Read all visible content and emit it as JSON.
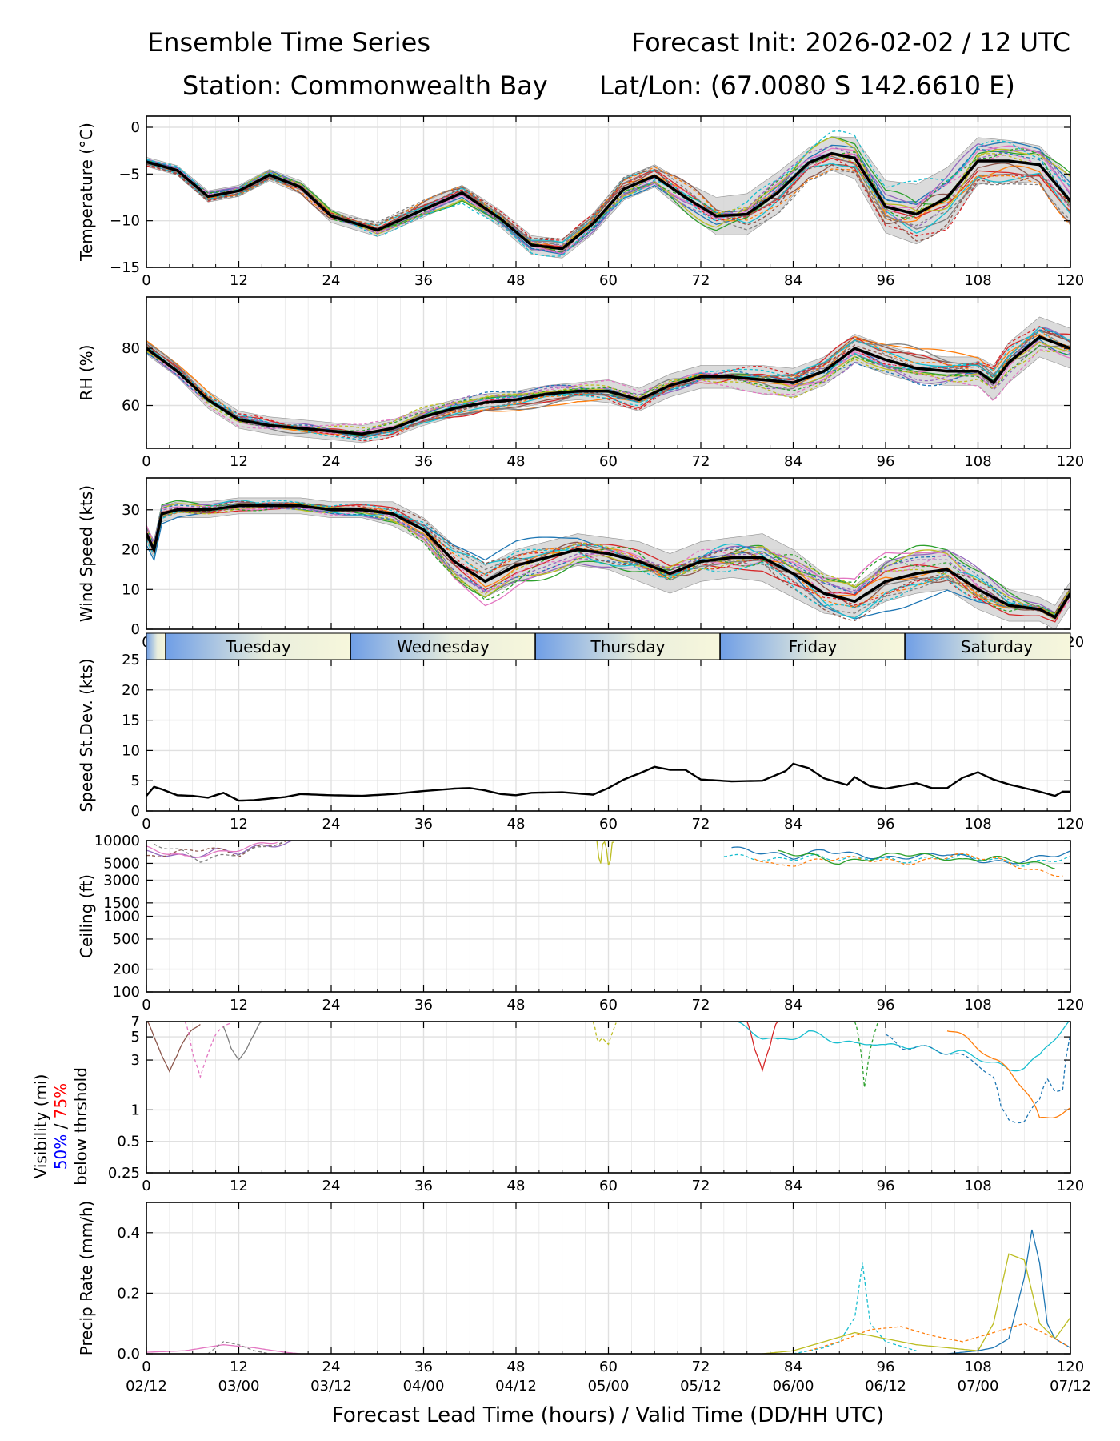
{
  "header": {
    "title": "Ensemble Time Series",
    "init": "Forecast Init: 2026-02-02 / 12 UTC",
    "station": "Station: Commonwealth Bay",
    "latlon": "Lat/Lon: (67.0080 S 142.6610 E)"
  },
  "colors": {
    "members": [
      "#1f77b4",
      "#ff7f0e",
      "#2ca02c",
      "#d62728",
      "#9467bd",
      "#8c564b",
      "#e377c2",
      "#7f7f7f",
      "#bcbd22",
      "#17becf"
    ],
    "mean": "#000000",
    "spread": "#d3d3d3",
    "grid": "#e0e0e0",
    "day_band_start": "#6f9ee6",
    "day_band_end": "#f7f7dc"
  },
  "x_axis": {
    "range": [
      0,
      120
    ],
    "ticks": [
      0,
      12,
      24,
      36,
      48,
      60,
      72,
      84,
      96,
      108,
      120
    ],
    "valid_labels": [
      "02/12",
      "03/00",
      "03/12",
      "04/00",
      "04/12",
      "05/00",
      "05/12",
      "06/00",
      "06/12",
      "07/00",
      "07/12"
    ],
    "xlabel": "Forecast Lead Time (hours) / Valid Time (DD/HH UTC)"
  },
  "days": {
    "labels": [
      "Tuesday",
      "Wednesday",
      "Thursday",
      "Friday",
      "Saturday"
    ],
    "boundaries_h": [
      2.5,
      26.5,
      50.5,
      74.5,
      98.5
    ]
  },
  "visibility_label": {
    "line1": "Visibility (mi)",
    "blue": "50%",
    "sep": " / ",
    "red": "75%",
    "line3": "below thrshold"
  },
  "chart_data": [
    {
      "type": "line",
      "title": "",
      "ylabel": "Temperature (°C)",
      "ylim": [
        -15,
        1.2
      ],
      "yticks": [
        0,
        -5,
        -10,
        -15
      ],
      "ytick_labels": [
        "0",
        "−5",
        "−10",
        "−15"
      ],
      "x": [
        0,
        4,
        8,
        12,
        16,
        20,
        24,
        30,
        36,
        41,
        46,
        50,
        54,
        58,
        62,
        66,
        70,
        74,
        78,
        82,
        86,
        89,
        92,
        96,
        100,
        104,
        108,
        112,
        116,
        120
      ],
      "mean": [
        -3.7,
        -4.6,
        -7.4,
        -6.8,
        -5.1,
        -6.4,
        -9.5,
        -11.0,
        -8.8,
        -7.0,
        -9.8,
        -12.6,
        -13.0,
        -10.3,
        -6.6,
        -5.2,
        -7.5,
        -9.5,
        -9.3,
        -7.0,
        -3.8,
        -2.8,
        -3.3,
        -8.5,
        -9.3,
        -7.5,
        -3.6,
        -3.6,
        -4.0,
        -7.9
      ],
      "spread": [
        0.5,
        0.5,
        0.6,
        0.6,
        0.6,
        0.7,
        0.7,
        0.7,
        0.8,
        0.8,
        0.9,
        1.0,
        1.0,
        1.1,
        1.2,
        1.2,
        1.6,
        2.0,
        2.2,
        2.2,
        1.6,
        1.8,
        2.2,
        2.8,
        3.2,
        3.2,
        2.5,
        2.2,
        2.0,
        2.6
      ]
    },
    {
      "type": "line",
      "title": "",
      "ylabel": "RH (%)",
      "ylim": [
        45,
        98
      ],
      "yticks": [
        60,
        80
      ],
      "ytick_labels": [
        "60",
        "80"
      ],
      "x": [
        0,
        4,
        8,
        12,
        16,
        20,
        24,
        28,
        32,
        36,
        40,
        44,
        48,
        52,
        56,
        60,
        64,
        68,
        72,
        76,
        80,
        84,
        88,
        92,
        96,
        100,
        104,
        108,
        110,
        112,
        116,
        120
      ],
      "mean": [
        80,
        72,
        62,
        55,
        53,
        52,
        51,
        50,
        52,
        56,
        59,
        61,
        62,
        64,
        65,
        65,
        62,
        67,
        70,
        70,
        69,
        68,
        72,
        80,
        76,
        73,
        72,
        72,
        68,
        75,
        84,
        80
      ],
      "spread": [
        2,
        2,
        3,
        3,
        3,
        3,
        3,
        3,
        3,
        3,
        3,
        3,
        3,
        3,
        3,
        4,
        4,
        4,
        4,
        4,
        5,
        5,
        5,
        5,
        5,
        5,
        5,
        5,
        6,
        7,
        7,
        7
      ]
    },
    {
      "type": "line",
      "title": "",
      "ylabel": "Wind Speed (kts)",
      "ylim": [
        0,
        38
      ],
      "yticks": [
        0,
        10,
        20,
        30
      ],
      "ytick_labels": [
        "0",
        "10",
        "20",
        "30"
      ],
      "x": [
        0,
        1,
        2,
        4,
        8,
        12,
        16,
        20,
        24,
        28,
        32,
        36,
        40,
        44,
        48,
        52,
        56,
        60,
        64,
        68,
        72,
        76,
        80,
        84,
        88,
        92,
        96,
        100,
        104,
        108,
        112,
        116,
        118,
        120
      ],
      "mean": [
        24,
        20,
        29,
        30,
        30,
        31,
        31,
        31,
        30,
        30,
        29,
        25,
        17,
        12,
        16,
        18,
        20,
        19,
        17,
        14,
        17,
        18,
        18,
        14,
        9,
        7,
        12,
        14,
        15,
        10,
        6,
        5,
        3,
        9
      ],
      "spread": [
        2,
        2,
        2,
        2,
        2,
        2,
        2,
        2,
        2,
        2,
        3,
        3,
        4,
        4,
        4,
        4,
        4,
        4,
        5,
        5,
        5,
        5,
        6,
        6,
        5,
        4,
        5,
        5,
        5,
        5,
        4,
        3,
        3,
        3
      ]
    },
    {
      "type": "line",
      "title": "",
      "ylabel": "Speed St.Dev. (kts)",
      "ylim": [
        0,
        25
      ],
      "yticks": [
        0,
        5,
        10,
        15,
        20,
        25
      ],
      "ytick_labels": [
        "0",
        "5",
        "10",
        "15",
        "20",
        "25"
      ],
      "x": [
        0,
        1,
        2,
        4,
        6,
        8,
        10,
        12,
        14,
        18,
        20,
        24,
        28,
        32,
        36,
        40,
        42,
        44,
        46,
        48,
        50,
        54,
        58,
        60,
        62,
        64,
        66,
        68,
        70,
        72,
        76,
        80,
        83,
        84,
        86,
        88,
        91,
        92,
        94,
        96,
        100,
        102,
        104,
        106,
        108,
        110,
        112,
        116,
        118,
        119,
        120
      ],
      "values": [
        2.5,
        4.0,
        3.6,
        2.6,
        2.5,
        2.2,
        3.0,
        1.7,
        1.8,
        2.3,
        2.8,
        2.6,
        2.5,
        2.8,
        3.3,
        3.7,
        3.8,
        3.4,
        2.8,
        2.6,
        3.0,
        3.1,
        2.7,
        3.8,
        5.2,
        6.2,
        7.3,
        6.8,
        6.8,
        5.2,
        4.9,
        5.0,
        6.6,
        7.8,
        7.1,
        5.4,
        4.3,
        5.6,
        4.1,
        3.7,
        4.6,
        3.8,
        3.8,
        5.5,
        6.4,
        5.2,
        4.4,
        3.2,
        2.5,
        3.2,
        3.2
      ]
    },
    {
      "type": "line",
      "title": "",
      "ylabel": "Ceiling (ft)",
      "scale": "log",
      "ylim": [
        100,
        10000
      ],
      "yticks": [
        100,
        200,
        500,
        1000,
        1500,
        3000,
        5000,
        10000
      ],
      "ytick_labels": [
        "100",
        "200",
        "500",
        "1000",
        "1500",
        "3000",
        "5000",
        "10000"
      ],
      "member_data": [
        {
          "x": [
            0,
            3,
            6,
            9,
            12,
            15,
            18,
            20
          ],
          "y": [
            7000,
            6500,
            6000,
            7500,
            7000,
            8500,
            9000,
            10000
          ]
        },
        {
          "x": [
            0,
            4,
            8,
            12,
            16,
            19
          ],
          "y": [
            6000,
            7000,
            8000,
            6500,
            9000,
            10000
          ]
        },
        {
          "x": [
            0,
            5,
            10,
            14,
            17
          ],
          "y": [
            8000,
            6000,
            7000,
            8500,
            10000
          ]
        },
        {
          "x": [
            1,
            4,
            7,
            11,
            15,
            18
          ],
          "y": [
            9000,
            7500,
            5500,
            6500,
            8000,
            10000
          ]
        },
        {
          "x": [
            58.5,
            58.8,
            59,
            59.3,
            59.6,
            60,
            60.2,
            60.5,
            60.9
          ],
          "y": [
            10000,
            5000,
            5000,
            10000,
            10000,
            5000,
            5000,
            10000,
            10000
          ]
        },
        {
          "x": [
            75,
            78,
            81,
            84,
            87,
            90,
            94,
            98,
            102,
            106,
            110,
            114,
            117,
            120
          ],
          "y": [
            6500,
            6000,
            5500,
            5800,
            6200,
            5600,
            6000,
            5300,
            5800,
            6200,
            5600,
            4800,
            5400,
            6000
          ]
        },
        {
          "x": [
            76,
            80,
            84,
            88,
            92,
            96,
            100,
            104,
            108,
            112,
            116,
            120
          ],
          "y": [
            8000,
            7000,
            6000,
            7500,
            6500,
            5800,
            6200,
            6800,
            5500,
            5000,
            6000,
            7000
          ]
        },
        {
          "x": [
            79,
            82,
            86,
            90,
            95,
            100,
            105,
            110,
            115,
            119
          ],
          "y": [
            6000,
            4500,
            5200,
            6000,
            5500,
            5000,
            6500,
            5800,
            4000,
            3500
          ]
        },
        {
          "x": [
            82,
            86,
            90,
            94,
            98,
            102,
            106,
            110,
            114,
            118
          ],
          "y": [
            7000,
            6500,
            5000,
            5800,
            6800,
            6200,
            5400,
            6000,
            5200,
            4500
          ]
        }
      ]
    },
    {
      "type": "line",
      "title": "",
      "ylabel": "Visibility (mi)",
      "scale": "log",
      "ylim": [
        0.25,
        7
      ],
      "yticks": [
        0.25,
        0.5,
        1,
        3,
        5,
        7
      ],
      "ytick_labels": [
        "0.25",
        "0.5",
        "1",
        "3",
        "5",
        "7"
      ],
      "member_data": [
        {
          "x": [
            0,
            1,
            2,
            3,
            4,
            5,
            6,
            7
          ],
          "y": [
            7,
            5,
            3.5,
            2.4,
            3.2,
            4.5,
            6,
            7
          ]
        },
        {
          "x": [
            5,
            6,
            7,
            8,
            9,
            10,
            11
          ],
          "y": [
            7,
            3.5,
            2.2,
            3.5,
            5,
            6,
            7
          ]
        },
        {
          "x": [
            10,
            11,
            12,
            13,
            14,
            15
          ],
          "y": [
            6,
            4,
            3.2,
            3.8,
            5,
            7
          ]
        },
        {
          "x": [
            58,
            58.6,
            59.2,
            60,
            61
          ],
          "y": [
            7,
            4.2,
            5,
            4.5,
            7
          ]
        },
        {
          "x": [
            76,
            78,
            80,
            82,
            84,
            86,
            88,
            90,
            92,
            94,
            96,
            98,
            100,
            102,
            104,
            106,
            108,
            110,
            112,
            114,
            116,
            118,
            120
          ],
          "y": [
            7,
            6,
            5,
            4.5,
            5,
            5.5,
            5,
            4.5,
            4.2,
            4.5,
            4,
            4.2,
            4,
            3.8,
            3.6,
            3.5,
            3.2,
            2.8,
            2.4,
            2.6,
            3.2,
            5,
            7
          ]
        },
        {
          "x": [
            96,
            98,
            100,
            102,
            104,
            106,
            108,
            110,
            111,
            112,
            114,
            116,
            117,
            118,
            119,
            120
          ],
          "y": [
            5,
            4,
            4,
            3.8,
            3.6,
            3.2,
            2.8,
            2,
            1,
            0.8,
            0.8,
            1.2,
            2,
            1.6,
            1.6,
            5
          ]
        },
        {
          "x": [
            104,
            106,
            108,
            110,
            112,
            114,
            116,
            118,
            120
          ],
          "y": [
            6,
            5,
            4,
            3,
            2.4,
            1.6,
            0.8,
            0.9,
            1.0
          ]
        },
        {
          "x": [
            92,
            92.7,
            93.3,
            94,
            95
          ],
          "y": [
            7,
            4,
            1.5,
            4,
            7
          ]
        },
        {
          "x": [
            78,
            79,
            80,
            81,
            82
          ],
          "y": [
            7,
            4,
            2.5,
            4,
            7
          ]
        }
      ]
    },
    {
      "type": "line",
      "title": "",
      "ylabel": "Precip Rate (mm/h)",
      "ylim": [
        0,
        0.5
      ],
      "yticks": [
        0,
        0.2,
        0.4
      ],
      "ytick_labels": [
        "0.0",
        "0.2",
        "0.4"
      ],
      "member_data": [
        {
          "x": [
            0,
            5,
            10,
            14,
            18,
            20
          ],
          "y": [
            0.005,
            0.01,
            0.03,
            0.02,
            0.005,
            0
          ]
        },
        {
          "x": [
            8,
            10,
            12,
            14,
            16
          ],
          "y": [
            0,
            0.04,
            0.03,
            0.01,
            0
          ]
        },
        {
          "x": [
            80,
            84,
            88,
            92,
            96,
            100,
            104,
            108,
            110,
            112,
            114,
            116,
            118,
            120
          ],
          "y": [
            0,
            0.01,
            0.04,
            0.07,
            0.05,
            0.03,
            0.02,
            0.01,
            0.1,
            0.33,
            0.31,
            0.1,
            0.05,
            0.12
          ]
        },
        {
          "x": [
            84,
            88,
            90,
            92,
            93,
            94,
            96,
            100
          ],
          "y": [
            0,
            0.02,
            0.04,
            0.12,
            0.3,
            0.1,
            0.04,
            0.01
          ]
        },
        {
          "x": [
            104,
            108,
            110,
            112,
            114,
            115,
            116,
            117,
            118,
            120
          ],
          "y": [
            0,
            0.01,
            0.02,
            0.05,
            0.25,
            0.41,
            0.3,
            0.1,
            0.05,
            0.02
          ]
        },
        {
          "x": [
            86,
            90,
            94,
            98,
            102,
            106,
            110,
            114,
            118,
            120
          ],
          "y": [
            0.01,
            0.04,
            0.08,
            0.09,
            0.06,
            0.04,
            0.07,
            0.1,
            0.05,
            0.02
          ]
        }
      ]
    }
  ]
}
